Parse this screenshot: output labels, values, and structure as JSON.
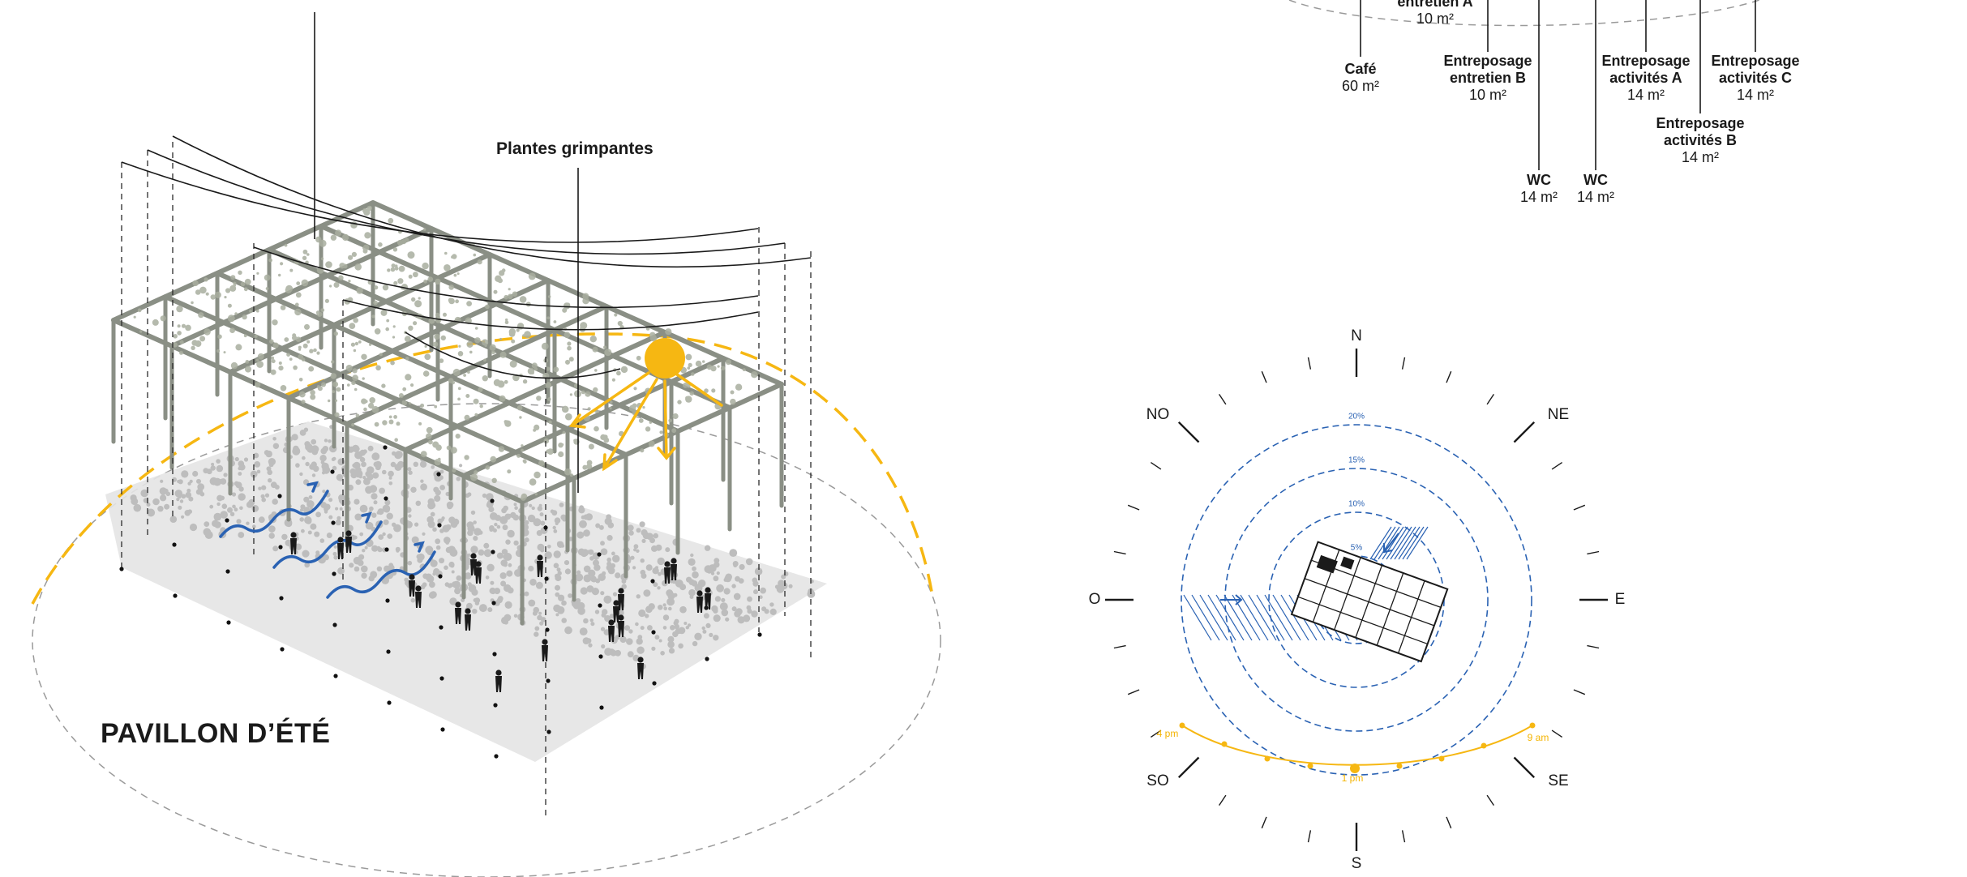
{
  "pavilion": {
    "title": "PAVILLON D’ÉTÉ",
    "callout": "Plantes grimpantes"
  },
  "program": {
    "items": [
      {
        "name": "entretien A",
        "area": "10 m²"
      },
      {
        "name": "Café",
        "area": "60 m²"
      },
      {
        "name": "Entreposage entretien B",
        "area": "10 m²"
      },
      {
        "name": "Entreposage activités A",
        "area": "14 m²"
      },
      {
        "name": "Entreposage activités C",
        "area": "14 m²"
      },
      {
        "name": "Entreposage activités B",
        "area": "14 m²"
      },
      {
        "name": "WC",
        "area": "14 m²"
      },
      {
        "name": "WC",
        "area": "14 m²"
      }
    ]
  },
  "compass": {
    "directions": {
      "n": "N",
      "ne": "NE",
      "e": "E",
      "se": "SE",
      "s": "S",
      "so": "SO",
      "o": "O",
      "no": "NO"
    },
    "rings": [
      "5%",
      "10%",
      "15%",
      "20%"
    ],
    "sun_times": [
      "4 pm",
      "1 pm",
      "9 am"
    ]
  },
  "colors": {
    "sun": "#f6b712",
    "wind": "#2a62b3",
    "ink": "#1a1a1a",
    "vegetation": "#c9c9c9"
  }
}
